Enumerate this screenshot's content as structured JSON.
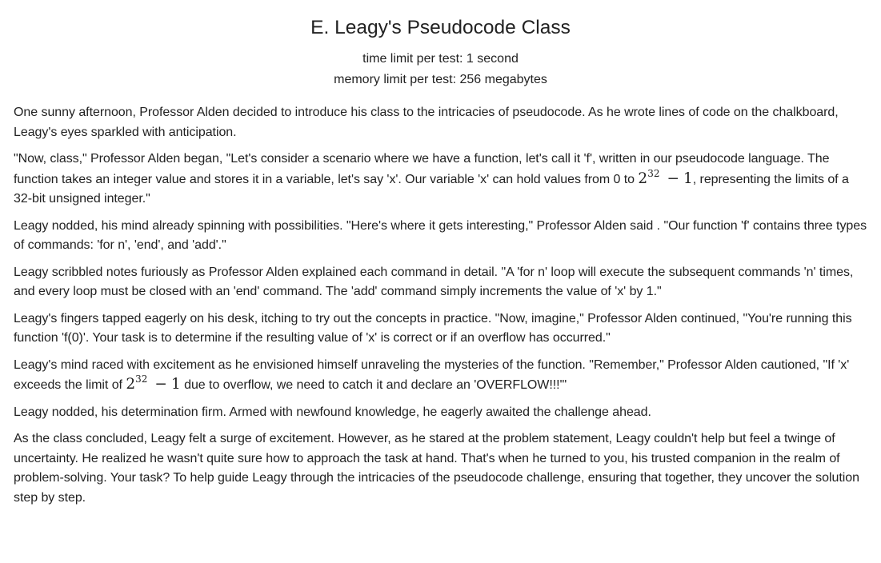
{
  "problem": {
    "title": "E. Leagy's Pseudocode Class",
    "time_limit": "time limit per test: 1 second",
    "memory_limit": "memory limit per test: 256 megabytes"
  },
  "paragraphs": {
    "p1": "One sunny afternoon, Professor Alden decided to introduce his class to the intricacies of pseudocode. As he wrote lines of code on the chalkboard, Leagy's eyes sparkled with anticipation.",
    "p2_before": "\"Now, class,\" Professor Alden began, \"Let's consider a scenario where we have a function, let's call it 'f', written in our pseudocode language. The function takes an integer value and stores it in a variable, let's say 'x'. Our variable 'x' can hold values from 0 to ",
    "p2_after": ", representing the limits of a 32-bit unsigned integer.\"",
    "p3": "Leagy nodded, his mind already spinning with possibilities. \"Here's where it gets interesting,\" Professor Alden said . \"Our function 'f' contains three types of commands: 'for n', 'end', and 'add'.\"",
    "p4": "Leagy scribbled notes furiously as Professor Alden explained each command in detail. \"A 'for n' loop will execute the subsequent commands 'n' times, and every loop must be closed with an 'end' command. The 'add' command simply increments the value of 'x' by 1.\"",
    "p5": "Leagy's fingers tapped eagerly on his desk, itching to try out the concepts in practice. \"Now, imagine,\" Professor Alden continued, \"You're running this function 'f(0)'. Your task is to determine if the resulting value of 'x' is correct or if an overflow has occurred.\"",
    "p6_before": "Leagy's mind raced with excitement as he envisioned himself unraveling the mysteries of the function. \"Remember,\" Professor Alden cautioned, \"If 'x' exceeds the limit of ",
    "p6_after": " due to overflow, we need to catch it and declare an 'OVERFLOW!!!'\"",
    "p7": "Leagy nodded, his determination firm. Armed with newfound knowledge, he eagerly awaited the challenge ahead.",
    "p8": "As the class concluded, Leagy felt a surge of excitement. However, as he stared at the problem statement, Leagy couldn't help but feel a twinge of uncertainty. He realized he wasn't quite sure how to approach the task at hand. That's when he turned to you, his trusted companion in the realm of problem-solving. Your task? To help guide Leagy through the intricacies of the pseudocode challenge, ensuring that together, they uncover the solution step by step."
  },
  "math": {
    "base": "2",
    "exponent": "32",
    "operator": "−",
    "subtrahend": "1"
  }
}
